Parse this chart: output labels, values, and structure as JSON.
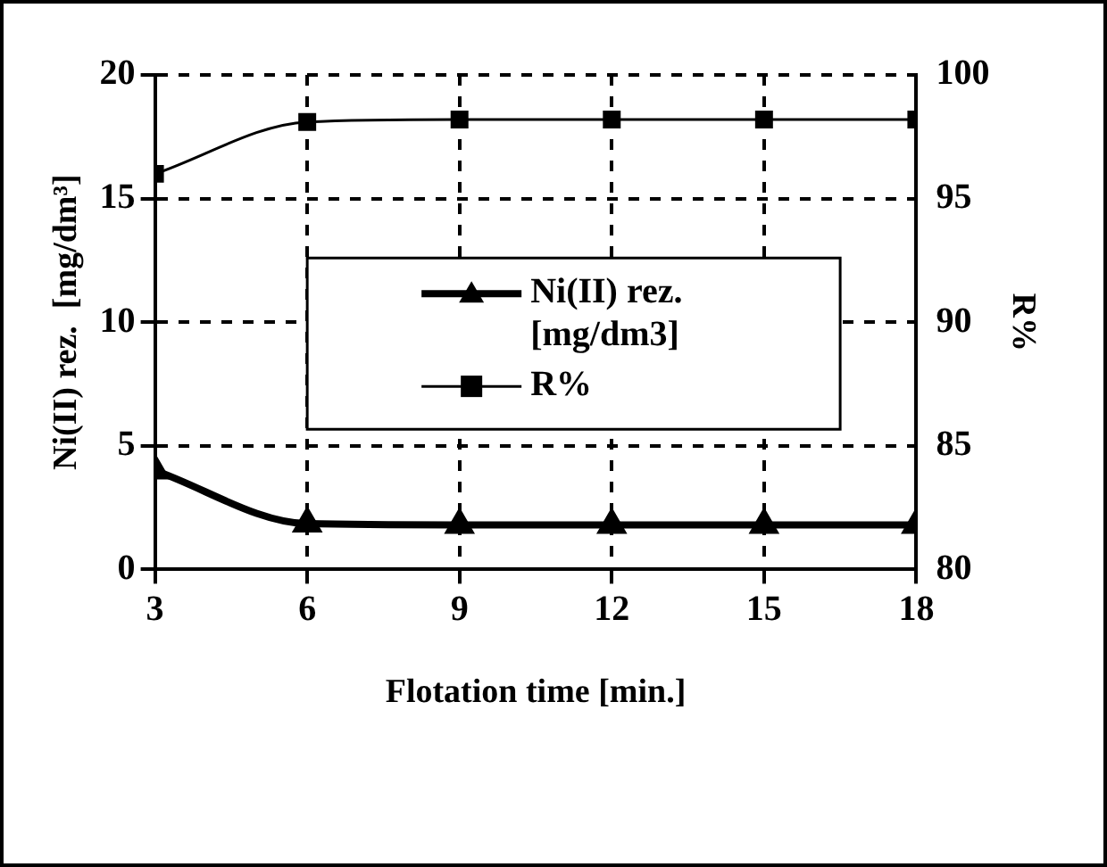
{
  "chart_data": {
    "type": "line",
    "xlabel": "Flotation time [min.]",
    "ylabel": "Ni(II) rez.  [mg/dm³]",
    "y2label": "R%",
    "x": [
      3,
      6,
      9,
      12,
      15,
      18
    ],
    "series": [
      {
        "name": "Ni(II) rez. [mg/dm3]",
        "color": "#000000",
        "values": [
          4.0,
          1.85,
          1.8,
          1.8,
          1.8,
          1.8
        ],
        "marker": "triangle"
      },
      {
        "name": "R%",
        "color": "#000000",
        "values": [
          96,
          98.1,
          98.2,
          98.2,
          98.2,
          98.2
        ],
        "marker": "square",
        "axis": "y2"
      }
    ],
    "xlim": [
      3,
      18
    ],
    "xticks": [
      3,
      6,
      9,
      12,
      15,
      18
    ],
    "ylim": [
      0,
      20
    ],
    "yticks": [
      0,
      5,
      10,
      15,
      20
    ],
    "y2lim": [
      80,
      100
    ],
    "y2ticks": [
      80,
      85,
      90,
      95,
      100
    ],
    "grid": true,
    "legend": "center",
    "line_style": "solid"
  }
}
